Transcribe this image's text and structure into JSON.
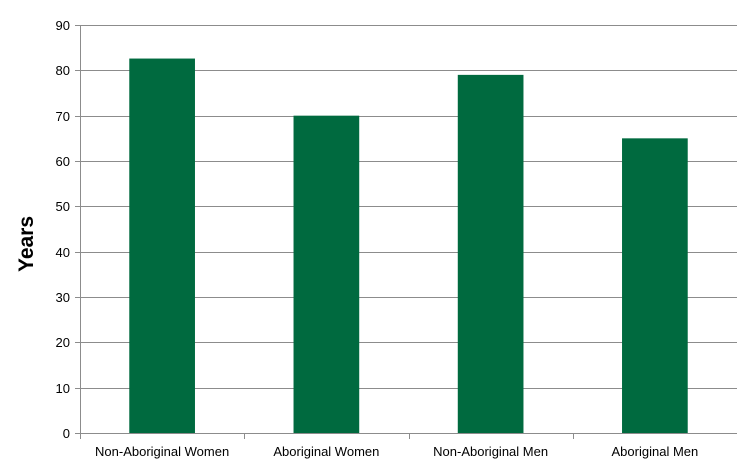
{
  "chart_data": {
    "type": "bar",
    "title": "",
    "xlabel": "",
    "ylabel": "Years",
    "categories": [
      "Non-Aboriginal Women",
      "Aboriginal Women",
      "Non-Aboriginal Men",
      "Aboriginal Men"
    ],
    "values": [
      82.6,
      70,
      79,
      65
    ],
    "ylim": [
      0,
      90
    ],
    "yticks": [
      0,
      10,
      20,
      30,
      40,
      50,
      60,
      70,
      80,
      90
    ],
    "grid": true,
    "legend": "none",
    "bar_color": "#006a3f",
    "grid_color": "#8c8c8c",
    "axis_color": "#8c8c8c"
  }
}
